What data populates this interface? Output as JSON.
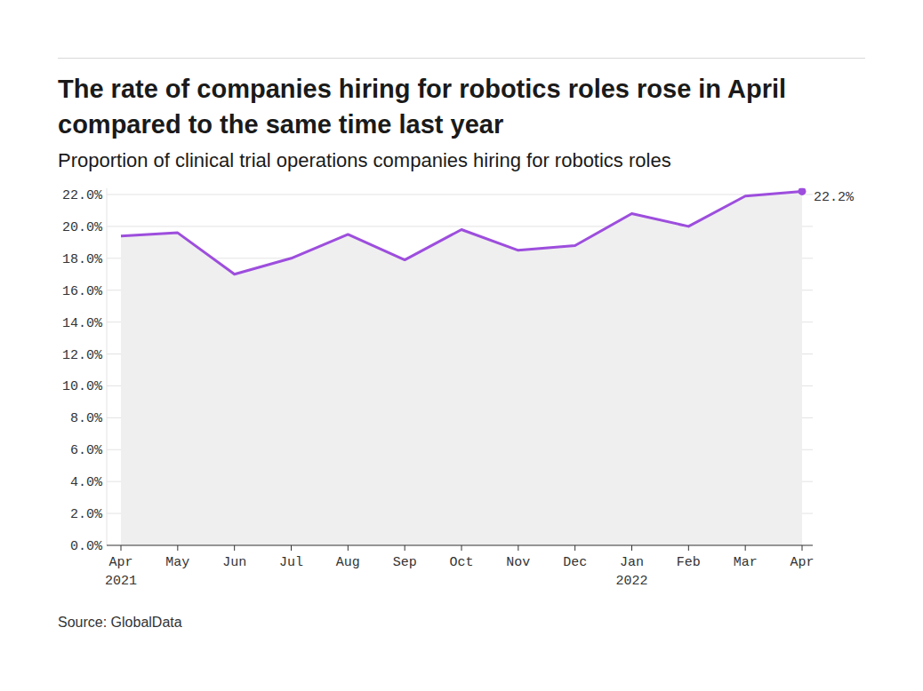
{
  "chart_data": {
    "type": "line",
    "title": "The rate of companies hiring for robotics roles rose in April compared to the same time last year",
    "subtitle": "Proportion of clinical trial operations companies hiring for robotics roles",
    "source": "Source: GlobalData",
    "categories": [
      "Apr 2021",
      "May",
      "Jun",
      "Jul",
      "Aug",
      "Sep",
      "Oct",
      "Nov",
      "Dec",
      "Jan 2022",
      "Feb",
      "Mar",
      "Apr"
    ],
    "values": [
      19.4,
      19.6,
      17.0,
      18.0,
      19.5,
      17.9,
      19.8,
      18.5,
      18.8,
      20.8,
      20.0,
      21.9,
      22.2
    ],
    "color": "#9d4edd",
    "ylim": [
      0,
      22.4
    ],
    "yticks": [
      {
        "value": 0,
        "label": "0.0%"
      },
      {
        "value": 2,
        "label": "2.0%"
      },
      {
        "value": 4,
        "label": "4.0%"
      },
      {
        "value": 6,
        "label": "6.0%"
      },
      {
        "value": 8,
        "label": "8.0%"
      },
      {
        "value": 10,
        "label": "10.0%"
      },
      {
        "value": 12,
        "label": "12.0%"
      },
      {
        "value": 14,
        "label": "14.0%"
      },
      {
        "value": 16,
        "label": "16.0%"
      },
      {
        "value": 18,
        "label": "18.0%"
      },
      {
        "value": 20,
        "label": "20.0%"
      },
      {
        "value": 22,
        "label": "22.0%"
      }
    ],
    "grid": true,
    "annotations": [
      {
        "text": "22.2%"
      }
    ]
  }
}
